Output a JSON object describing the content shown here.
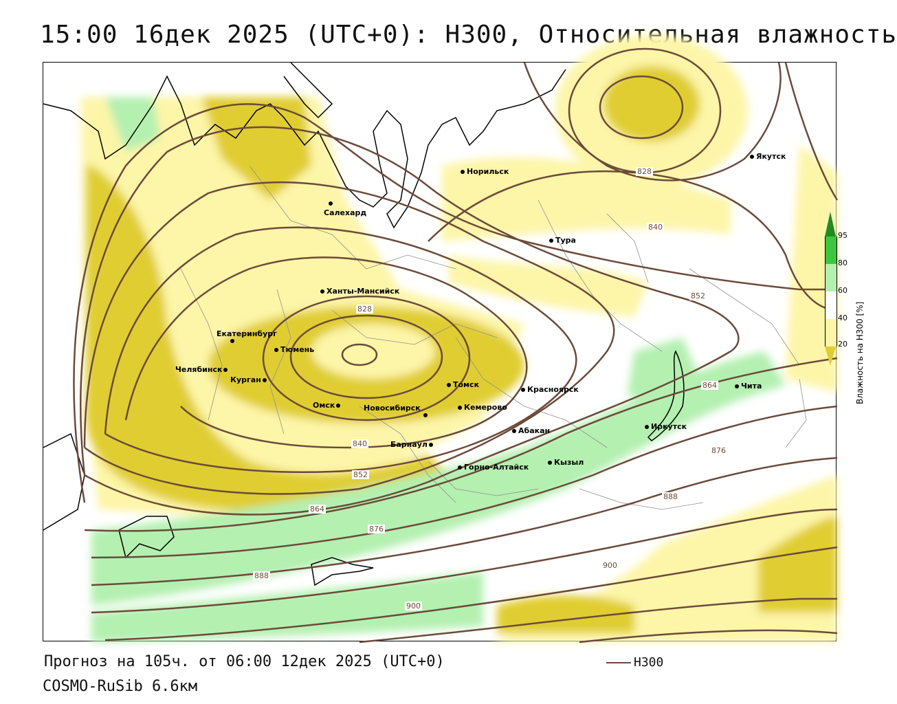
{
  "title": "15:00 16дек 2025 (UTC+0): H300, Относительная влажность",
  "footer": {
    "forecast": "Прогноз на 105ч. от 06:00 12дек 2025 (UTC+0)",
    "model": "COSMO-RuSib 6.6км",
    "line_legend": "H300"
  },
  "legend": {
    "axis_label": "Влажность на H300 [%]",
    "ticks": [
      "95",
      "80",
      "60",
      "40",
      "20"
    ],
    "colors": {
      "c20": "#e0cd32",
      "c40": "#fdf5a8",
      "c60": "#ffffff",
      "c80": "#b4f0b0",
      "c95": "#3ec63e",
      "c100": "#218a21"
    }
  },
  "colors": {
    "contour": "#6b4a3a",
    "border": "#000000",
    "admin_border": "#909090"
  },
  "cities": [
    {
      "name": "Норильск"
    },
    {
      "name": "Якутск"
    },
    {
      "name": "Салехард"
    },
    {
      "name": "Тура"
    },
    {
      "name": "Ханты-Мансийск"
    },
    {
      "name": "Екатеринбург"
    },
    {
      "name": "Тюмень"
    },
    {
      "name": "Челябинск"
    },
    {
      "name": "Курган"
    },
    {
      "name": "Омск"
    },
    {
      "name": "Новосибирск"
    },
    {
      "name": "Томск"
    },
    {
      "name": "Кемерово"
    },
    {
      "name": "Красноярск"
    },
    {
      "name": "Абакан"
    },
    {
      "name": "Барнаул"
    },
    {
      "name": "Горно-Алтайск"
    },
    {
      "name": "Кызыл"
    },
    {
      "name": "Иркутск"
    },
    {
      "name": "Чита"
    }
  ],
  "contour_labels": [
    "828",
    "828",
    "840",
    "840",
    "852",
    "852",
    "864",
    "864",
    "876",
    "876",
    "888",
    "888",
    "900",
    "900"
  ]
}
